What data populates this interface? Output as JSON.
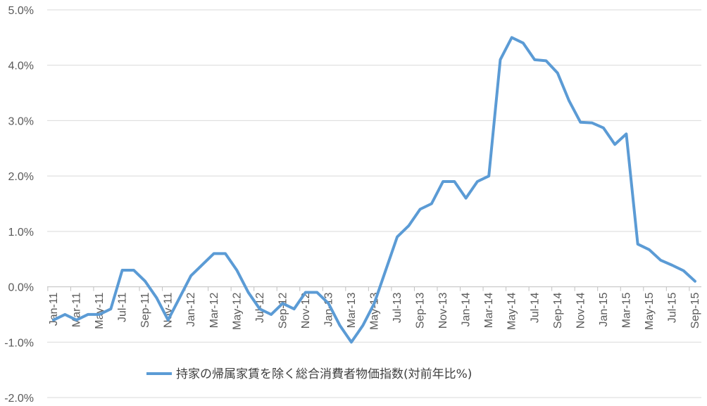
{
  "chart_data": {
    "type": "line",
    "title": "",
    "xlabel": "",
    "ylabel": "",
    "x": [
      "Jan-11",
      "Feb-11",
      "Mar-11",
      "Apr-11",
      "May-11",
      "Jun-11",
      "Jul-11",
      "Aug-11",
      "Sep-11",
      "Oct-11",
      "Nov-11",
      "Dec-11",
      "Jan-12",
      "Feb-12",
      "Mar-12",
      "Apr-12",
      "May-12",
      "Jun-12",
      "Jul-12",
      "Aug-12",
      "Sep-12",
      "Oct-12",
      "Nov-12",
      "Dec-12",
      "Jan-13",
      "Feb-13",
      "Mar-13",
      "Apr-13",
      "May-13",
      "Jun-13",
      "Jul-13",
      "Aug-13",
      "Sep-13",
      "Oct-13",
      "Nov-13",
      "Dec-13",
      "Jan-14",
      "Feb-14",
      "Mar-14",
      "Apr-14",
      "May-14",
      "Jun-14",
      "Jul-14",
      "Aug-14",
      "Sep-14",
      "Oct-14",
      "Nov-14",
      "Dec-14",
      "Jan-15",
      "Feb-15",
      "Mar-15",
      "Apr-15",
      "May-15",
      "Jun-15",
      "Jul-15",
      "Aug-15",
      "Sep-15"
    ],
    "x_tick_labels": [
      "Jan-11",
      "Mar-11",
      "May-11",
      "Jul-11",
      "Sep-11",
      "Nov-11",
      "Jan-12",
      "Mar-12",
      "May-12",
      "Jul-12",
      "Sep-12",
      "Nov-12",
      "Jan-13",
      "Mar-13",
      "May-13",
      "Jul-13",
      "Sep-13",
      "Nov-13",
      "Jan-14",
      "Mar-14",
      "May-14",
      "Jul-14",
      "Sep-14",
      "Nov-14",
      "Jan-15",
      "Mar-15",
      "May-15",
      "Jul-15",
      "Sep-15"
    ],
    "series": [
      {
        "name": "持家の帰属家賃を除く総合消費者物価指数(対前年比%)",
        "color": "#5b9bd5",
        "values": [
          -0.6,
          -0.5,
          -0.6,
          -0.5,
          -0.5,
          -0.4,
          0.3,
          0.3,
          0.1,
          -0.2,
          -0.6,
          -0.2,
          0.2,
          0.4,
          0.6,
          0.6,
          0.3,
          -0.1,
          -0.4,
          -0.5,
          -0.3,
          -0.4,
          -0.1,
          -0.1,
          -0.3,
          -0.7,
          -1.0,
          -0.7,
          -0.3,
          0.3,
          0.9,
          1.1,
          1.4,
          1.5,
          1.9,
          1.9,
          1.6,
          1.9,
          2.0,
          4.1,
          4.5,
          4.4,
          4.1,
          4.08,
          3.86,
          3.36,
          2.97,
          2.96,
          2.87,
          2.57,
          2.76,
          0.77,
          0.67,
          0.48,
          0.39,
          0.29,
          0.1
        ]
      }
    ],
    "ylim": [
      -2.0,
      5.0
    ],
    "y_ticks": [
      -2.0,
      -1.0,
      0.0,
      1.0,
      2.0,
      3.0,
      4.0,
      5.0
    ],
    "y_tick_labels": [
      "-2.0%",
      "-1.0%",
      "0.0%",
      "1.0%",
      "2.0%",
      "3.0%",
      "4.0%",
      "5.0%"
    ],
    "grid": true,
    "legend_position": "bottom-center",
    "gridline_color": "#d9d9d9",
    "axis_color": "#bfbfbf"
  }
}
